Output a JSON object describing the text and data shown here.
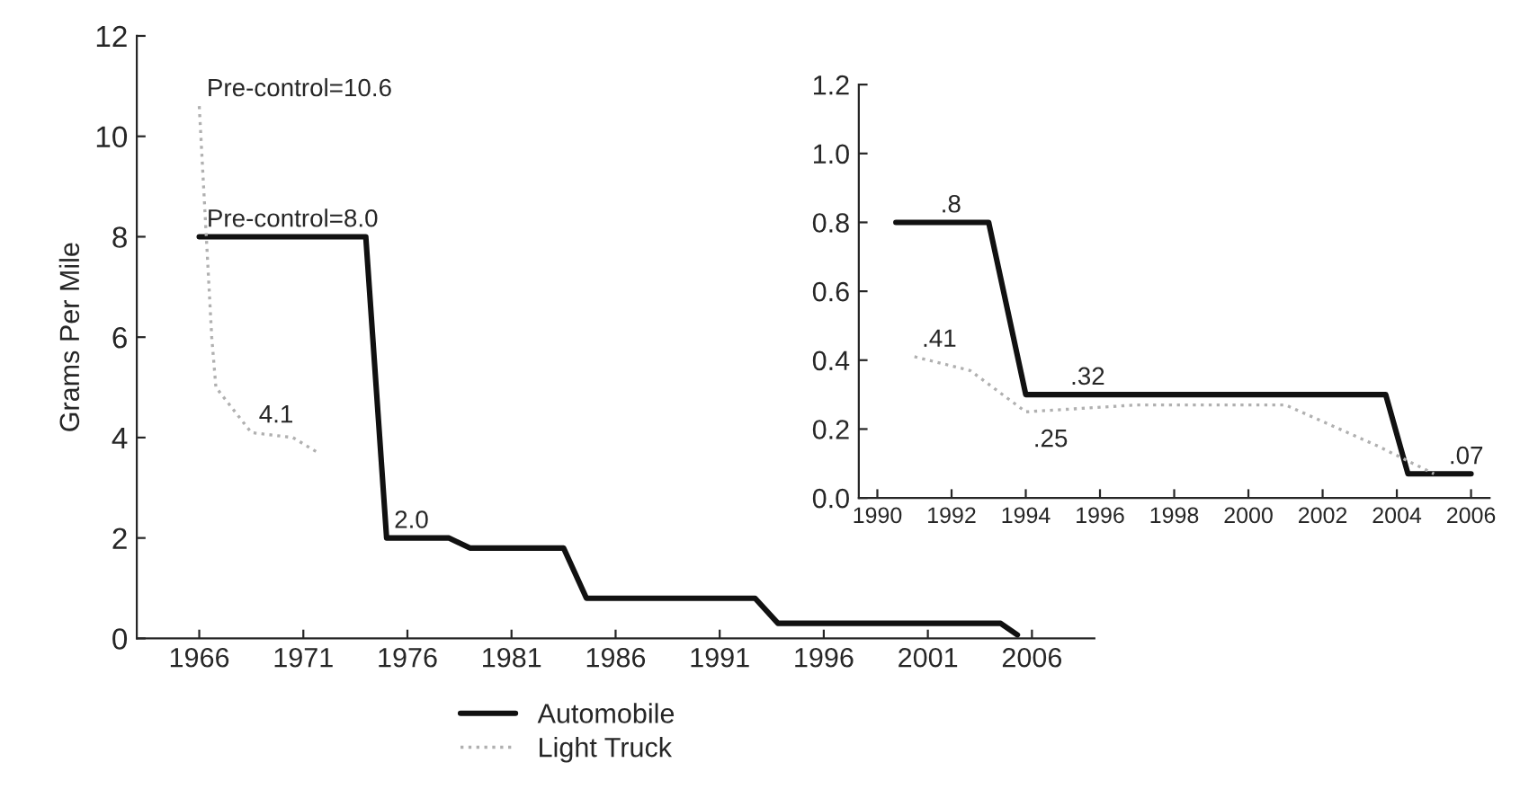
{
  "chart_data": [
    {
      "type": "line",
      "ylabel": "Grams Per Mile",
      "xlim": [
        1963,
        2009
      ],
      "xticks": [
        1966,
        1971,
        1976,
        1981,
        1986,
        1991,
        1996,
        2001,
        2006
      ],
      "ylim": [
        0,
        12
      ],
      "yticks": [
        0,
        2,
        4,
        6,
        8,
        10,
        12
      ],
      "legend": "bottom",
      "series": [
        {
          "name": "Automobile",
          "color": "#111111",
          "line_style": "solid",
          "x": [
            1966,
            1974,
            1975,
            1978,
            1979,
            1983.5,
            1984.6,
            1992.7,
            1993.8,
            2004.5,
            2005.3
          ],
          "values": [
            8.0,
            8.0,
            2.0,
            2.0,
            1.8,
            1.8,
            0.8,
            0.8,
            0.3,
            0.3,
            0.07
          ]
        },
        {
          "name": "Light Truck",
          "color": "#b0b0b0",
          "line_style": "dotted",
          "x": [
            1966,
            1966.6,
            1966.8,
            1968.5,
            1970.5,
            1971.7
          ],
          "values": [
            10.6,
            6.0,
            5.0,
            4.1,
            4.0,
            3.7
          ]
        }
      ],
      "annotations": [
        {
          "text": "Pre-control=10.6",
          "x": 1966,
          "y": 10.6
        },
        {
          "text": "Pre-control=8.0",
          "x": 1966,
          "y": 8.0
        },
        {
          "text": "4.1",
          "x": 1968.5,
          "y": 4.1
        },
        {
          "text": "2.0",
          "x": 1975,
          "y": 2.0
        }
      ]
    },
    {
      "type": "line",
      "xlim": [
        1989.5,
        2006.5
      ],
      "xticks": [
        1990,
        1992,
        1994,
        1996,
        1998,
        2000,
        2002,
        2004,
        2006
      ],
      "ylim": [
        0,
        1.2
      ],
      "yticks": [
        {
          "value": 0,
          "label": "0.0"
        },
        0.2,
        0.4,
        0.6,
        0.8,
        {
          "value": 1,
          "label": "1.0"
        },
        1.2
      ],
      "series": [
        {
          "color": "#111111",
          "line_style": "solid",
          "x": [
            1990.5,
            1993,
            1994,
            2003.7,
            2004.3,
            2006
          ],
          "values": [
            0.8,
            0.8,
            0.3,
            0.3,
            0.07,
            0.07
          ]
        },
        {
          "color": "#b0b0b0",
          "line_style": "dotted",
          "x": [
            1991,
            1992.5,
            1994,
            1997,
            2001,
            2003.5,
            2005
          ],
          "values": [
            0.41,
            0.37,
            0.25,
            0.27,
            0.27,
            0.15,
            0.07
          ]
        }
      ],
      "annotations": [
        {
          "text": ".8",
          "x": 1991.5,
          "y": 0.8
        },
        {
          "text": ".41",
          "x": 1991,
          "y": 0.41
        },
        {
          "text": ".32",
          "x": 1995,
          "y": 0.3
        },
        {
          "text": ".25",
          "x": 1994,
          "y": 0.25
        },
        {
          "text": ".07",
          "x": 2005.2,
          "y": 0.07
        }
      ]
    }
  ]
}
